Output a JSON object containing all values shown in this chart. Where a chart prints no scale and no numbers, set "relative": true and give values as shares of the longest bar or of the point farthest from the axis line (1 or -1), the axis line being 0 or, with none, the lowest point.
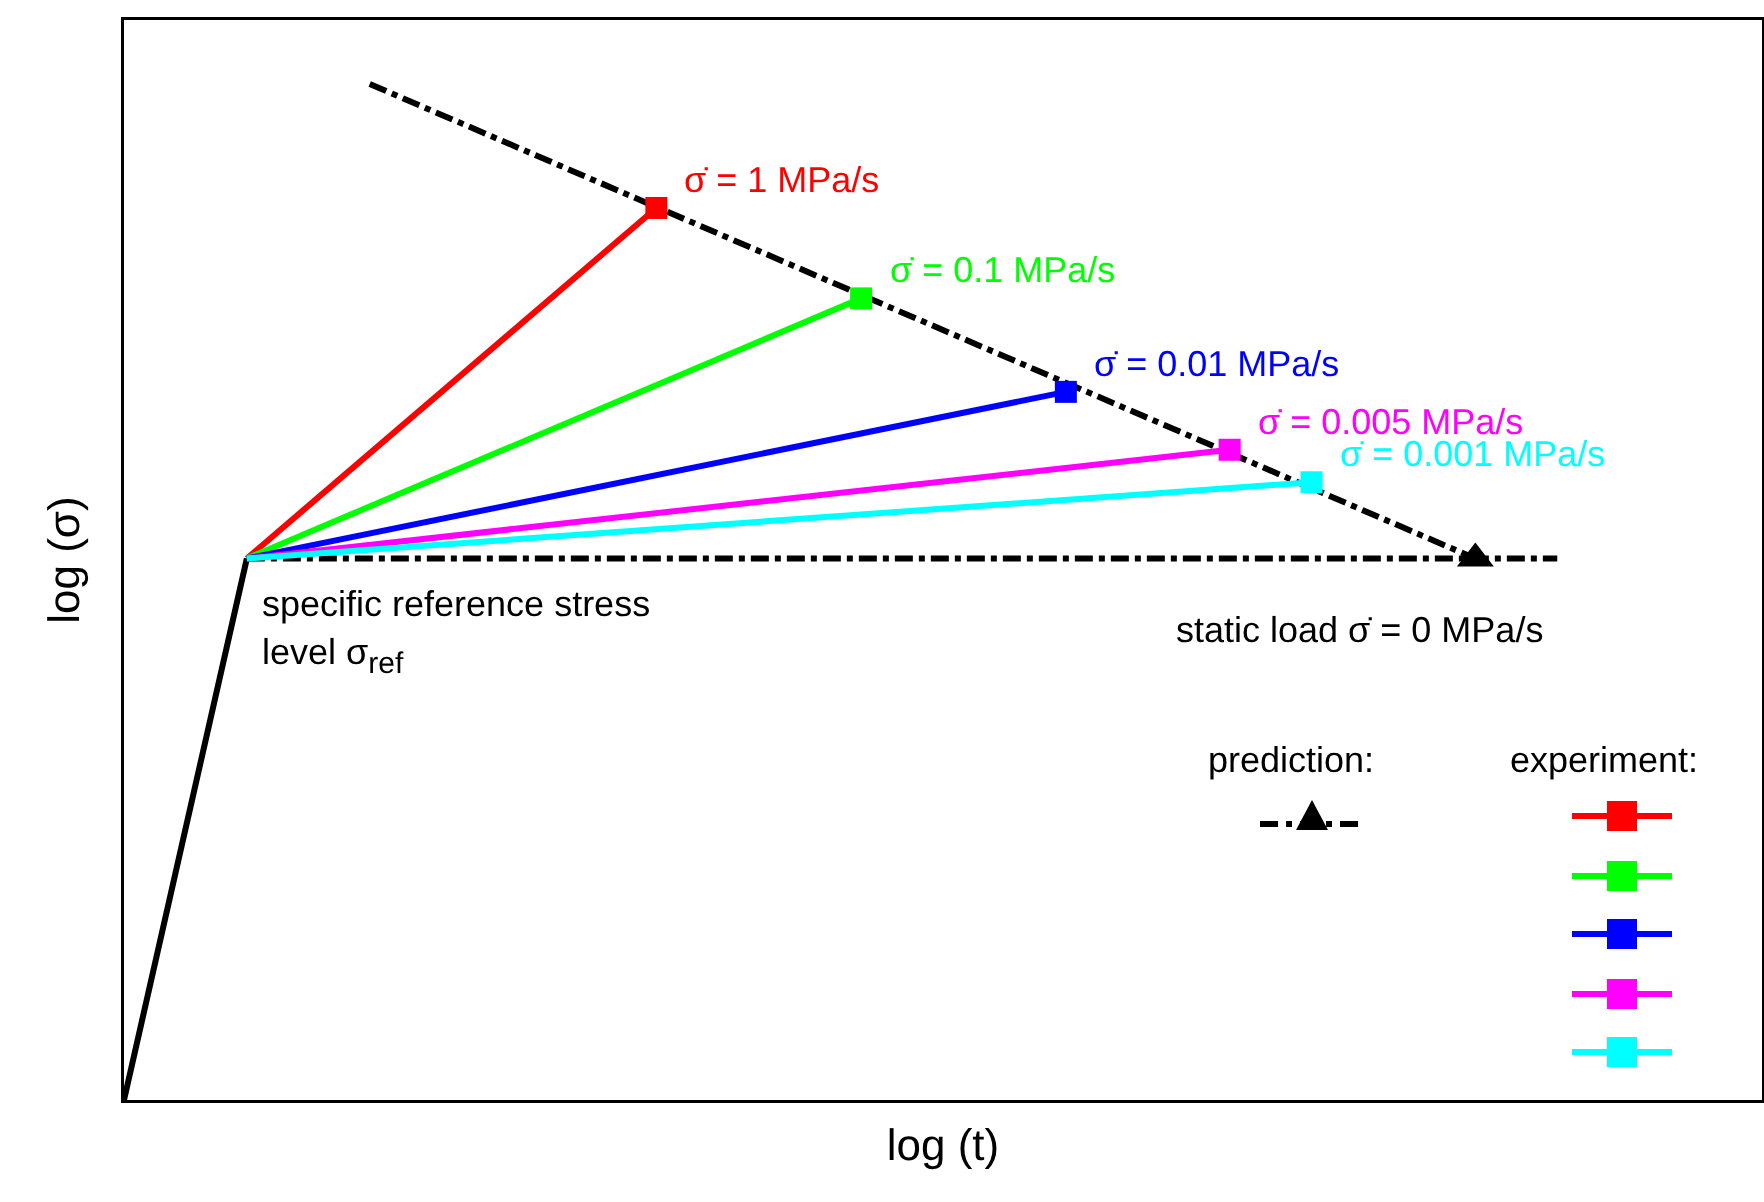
{
  "chart_data": {
    "type": "line",
    "relative": true,
    "xlabel": "log (t)",
    "ylabel": "log (σ)",
    "tick_labels": false,
    "grid": false,
    "legend_title": "experiment:",
    "categories": [
      null,
      null,
      null,
      null,
      null,
      null,
      null,
      null,
      null,
      null,
      null,
      null,
      null,
      null,
      null,
      null,
      null,
      null,
      null,
      null,
      null,
      null,
      null,
      null,
      null,
      null,
      null,
      null,
      null,
      null,
      null,
      null,
      null,
      null,
      null,
      null,
      null,
      null,
      null,
      null,
      null
    ],
    "series": [
      {
        "color": "#000000",
        "line_style": "solid",
        "values": [
          0,
          null,
          null,
          0.533,
          null,
          null,
          null,
          null,
          null,
          null,
          null,
          null,
          null,
          null,
          null,
          null,
          null,
          null,
          null,
          null,
          null,
          null,
          null,
          null,
          null,
          null,
          null,
          null,
          null,
          null,
          null,
          null,
          null,
          null,
          null,
          null,
          null,
          null,
          null,
          null,
          null
        ]
      },
      {
        "color": "#000000",
        "line_style": "dashdot",
        "marker": "triangle",
        "values": [
          null,
          null,
          null,
          null,
          null,
          null,
          1,
          null,
          null,
          null,
          null,
          null,
          null,
          null,
          null,
          null,
          null,
          null,
          null,
          null,
          null,
          null,
          null,
          null,
          null,
          null,
          null,
          null,
          null,
          null,
          null,
          null,
          null,
          0.533,
          null,
          null,
          null,
          null,
          null,
          null,
          null
        ]
      },
      {
        "color": "#000000",
        "line_style": "dashdot",
        "values": [
          null,
          null,
          null,
          0.533,
          null,
          null,
          null,
          null,
          null,
          null,
          null,
          null,
          null,
          null,
          null,
          null,
          null,
          null,
          null,
          null,
          null,
          null,
          null,
          null,
          null,
          null,
          null,
          null,
          null,
          null,
          null,
          null,
          null,
          null,
          null,
          0.533,
          null,
          null,
          null,
          null,
          null
        ]
      },
      {
        "name": "σ̇ = 1 MPa/s",
        "color": "#ff0000",
        "line_style": "solid",
        "marker": "square",
        "values": [
          null,
          null,
          null,
          0.533,
          null,
          null,
          null,
          null,
          null,
          null,
          null,
          null,
          null,
          0.878,
          null,
          null,
          null,
          null,
          null,
          null,
          null,
          null,
          null,
          null,
          null,
          null,
          null,
          null,
          null,
          null,
          null,
          null,
          null,
          null,
          null,
          null,
          null,
          null,
          null,
          null,
          null
        ]
      },
      {
        "name": "σ̇ = 0.1 MPa/s",
        "color": "#00ff00",
        "line_style": "solid",
        "marker": "square",
        "values": [
          null,
          null,
          null,
          0.533,
          null,
          null,
          null,
          null,
          null,
          null,
          null,
          null,
          null,
          null,
          null,
          null,
          null,
          null,
          0.789,
          null,
          null,
          null,
          null,
          null,
          null,
          null,
          null,
          null,
          null,
          null,
          null,
          null,
          null,
          null,
          null,
          null,
          null,
          null,
          null,
          null,
          null
        ]
      },
      {
        "name": "σ̇ = 0.01 MPa/s",
        "color": "#0000ff",
        "line_style": "solid",
        "marker": "square",
        "values": [
          null,
          null,
          null,
          0.533,
          null,
          null,
          null,
          null,
          null,
          null,
          null,
          null,
          null,
          null,
          null,
          null,
          null,
          null,
          null,
          null,
          null,
          null,
          null,
          0.697,
          null,
          null,
          null,
          null,
          null,
          null,
          null,
          null,
          null,
          null,
          null,
          null,
          null,
          null,
          null,
          null,
          null
        ]
      },
      {
        "name": "σ̇ = 0.005 MPa/s",
        "color": "#ff00ff",
        "line_style": "solid",
        "marker": "square",
        "values": [
          null,
          null,
          null,
          0.533,
          null,
          null,
          null,
          null,
          null,
          null,
          null,
          null,
          null,
          null,
          null,
          null,
          null,
          null,
          null,
          null,
          null,
          null,
          null,
          null,
          null,
          null,
          null,
          0.64,
          null,
          null,
          null,
          null,
          null,
          null,
          null,
          null,
          null,
          null,
          null,
          null,
          null
        ]
      },
      {
        "name": "σ̇ = 0.001 MPa/s",
        "color": "#00ffff",
        "line_style": "solid",
        "marker": "square",
        "values": [
          null,
          null,
          null,
          0.533,
          null,
          null,
          null,
          null,
          null,
          null,
          null,
          null,
          null,
          null,
          null,
          null,
          null,
          null,
          null,
          null,
          null,
          null,
          null,
          null,
          null,
          null,
          null,
          null,
          null,
          0.608,
          null,
          null,
          null,
          null,
          null,
          null,
          null,
          null,
          null,
          null,
          null
        ]
      }
    ],
    "annotations": [
      "specific reference stress level σ$_{ref}$",
      "static load σ̇ = 0 MPa/s",
      "prediction:"
    ]
  }
}
